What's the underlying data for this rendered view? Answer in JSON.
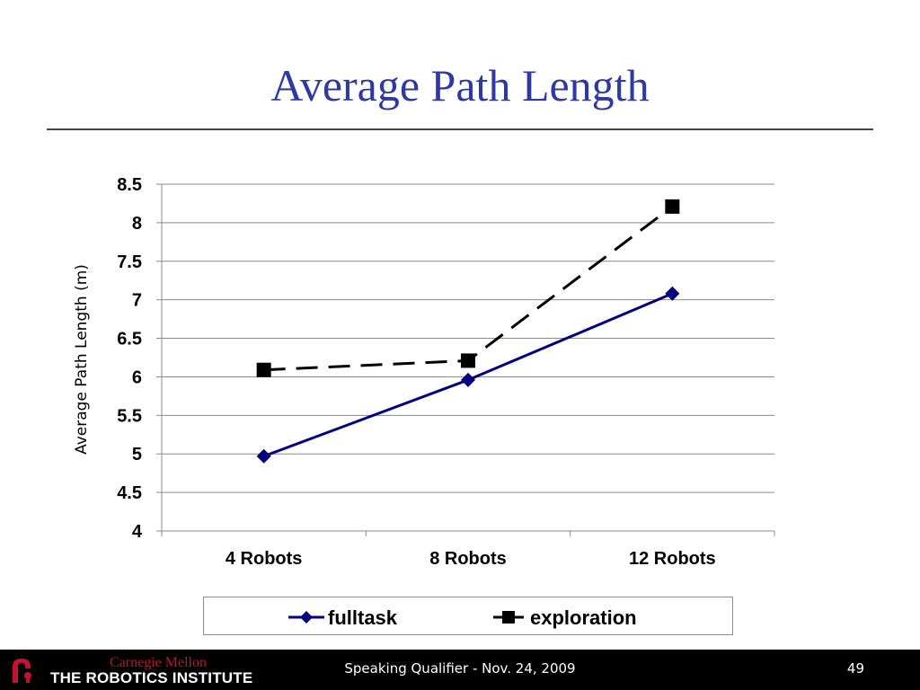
{
  "slide": {
    "title": "Average Path Length",
    "footer_text": "Speaking Qualifier - Nov. 24, 2009",
    "page_number": "49",
    "logo_top": "Carnegie Mellon",
    "logo_bottom": "THE ROBOTICS INSTITUTE",
    "title_color": "#2e3aa3"
  },
  "chart_data": {
    "type": "line",
    "title": "",
    "xlabel": "",
    "ylabel": "Average Path Length (m)",
    "categories": [
      "4 Robots",
      "8 Robots",
      "12 Robots"
    ],
    "ylim": [
      4,
      8.5
    ],
    "yticks": [
      "4",
      "4.5",
      "5",
      "5.5",
      "6",
      "6.5",
      "7",
      "7.5",
      "8",
      "8.5"
    ],
    "grid": true,
    "legend_position": "bottom",
    "series": [
      {
        "name": "fulltask",
        "values": [
          4.97,
          5.96,
          7.08
        ],
        "color": "#000080",
        "marker": "diamond",
        "dash": "solid"
      },
      {
        "name": "exploration",
        "values": [
          6.09,
          6.21,
          8.21
        ],
        "color": "#000000",
        "marker": "square",
        "dash": "dashed"
      }
    ]
  }
}
